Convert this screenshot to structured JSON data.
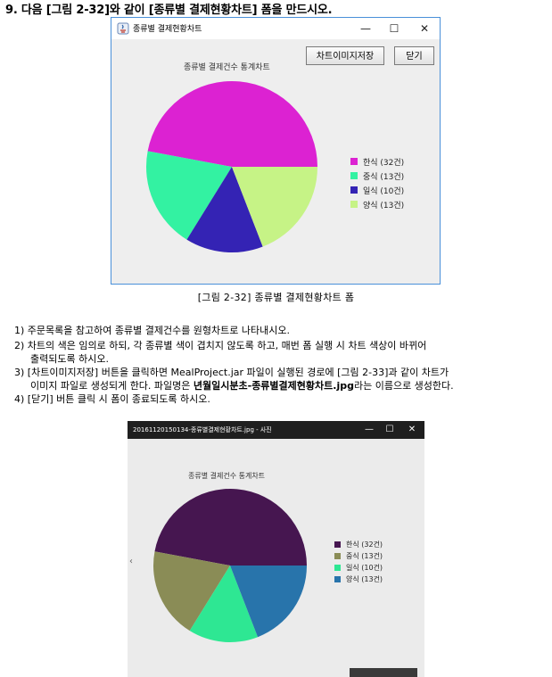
{
  "heading": "9. 다음 [그림 2-32]와 같이 [종류별 결제현황차트] 폼을 만드시오.",
  "window1": {
    "title": "종류별 결제현황차트",
    "controls": {
      "minimize": "—",
      "maximize": "☐",
      "close": "✕"
    },
    "save_button": "차트이미지저장",
    "close_button": "닫기"
  },
  "caption": "[그림 2-32] 종류별 결제현황차트 폼",
  "instructions": {
    "line1": "1) 주문목록을 참고하여 종류별 결제건수를 원형차트로 나타내시오.",
    "line2a": "2) 차트의 색은 임의로 하되, 각 종류별 색이 겹치지 않도록 하고, 매번 폼 실행 시 차트 색상이 바뀌어",
    "line2b": "출력되도록 하시오.",
    "line3a": "3) [차트이미지저장] 버튼을 클릭하면 MealProject.jar 파일이 실행된 경로에 [그림 2-33]과 같이 차트가",
    "line3b_pre": "이미지 파일로 생성되게 한다. 파일명은 ",
    "line3b_bold": "년월일시분초-종류별결제현황차트.jpg",
    "line3b_post": "라는 이름으로 생성한다.",
    "line4": "4) [닫기] 버튼 클릭 시 폼이 종료되도록 하시오."
  },
  "window2": {
    "title": "20161120150134-종류별결제현황차트.jpg - 사진",
    "controls": {
      "minimize": "—",
      "maximize": "☐",
      "close": "✕"
    },
    "nav_prev": "‹"
  },
  "chart_data": [
    {
      "type": "pie",
      "title": "종류별 결제건수 통계차트",
      "labels": [
        "한식 (32건)",
        "중식 (13건)",
        "일식 (10건)",
        "양식 (13건)"
      ],
      "values": [
        32,
        13,
        10,
        13
      ],
      "colors": [
        "#dc22d2",
        "#33f2a2",
        "#3423b4",
        "#c6f386"
      ],
      "legend": "right"
    },
    {
      "type": "pie",
      "title": "종류별 결제건수 통계차트",
      "labels": [
        "한식 (32건)",
        "중식 (13건)",
        "일식 (10건)",
        "양식 (13건)"
      ],
      "values": [
        32,
        13,
        10,
        13
      ],
      "colors": [
        "#461650",
        "#8a8c56",
        "#2ee793",
        "#2874ab"
      ],
      "legend": "right"
    }
  ]
}
